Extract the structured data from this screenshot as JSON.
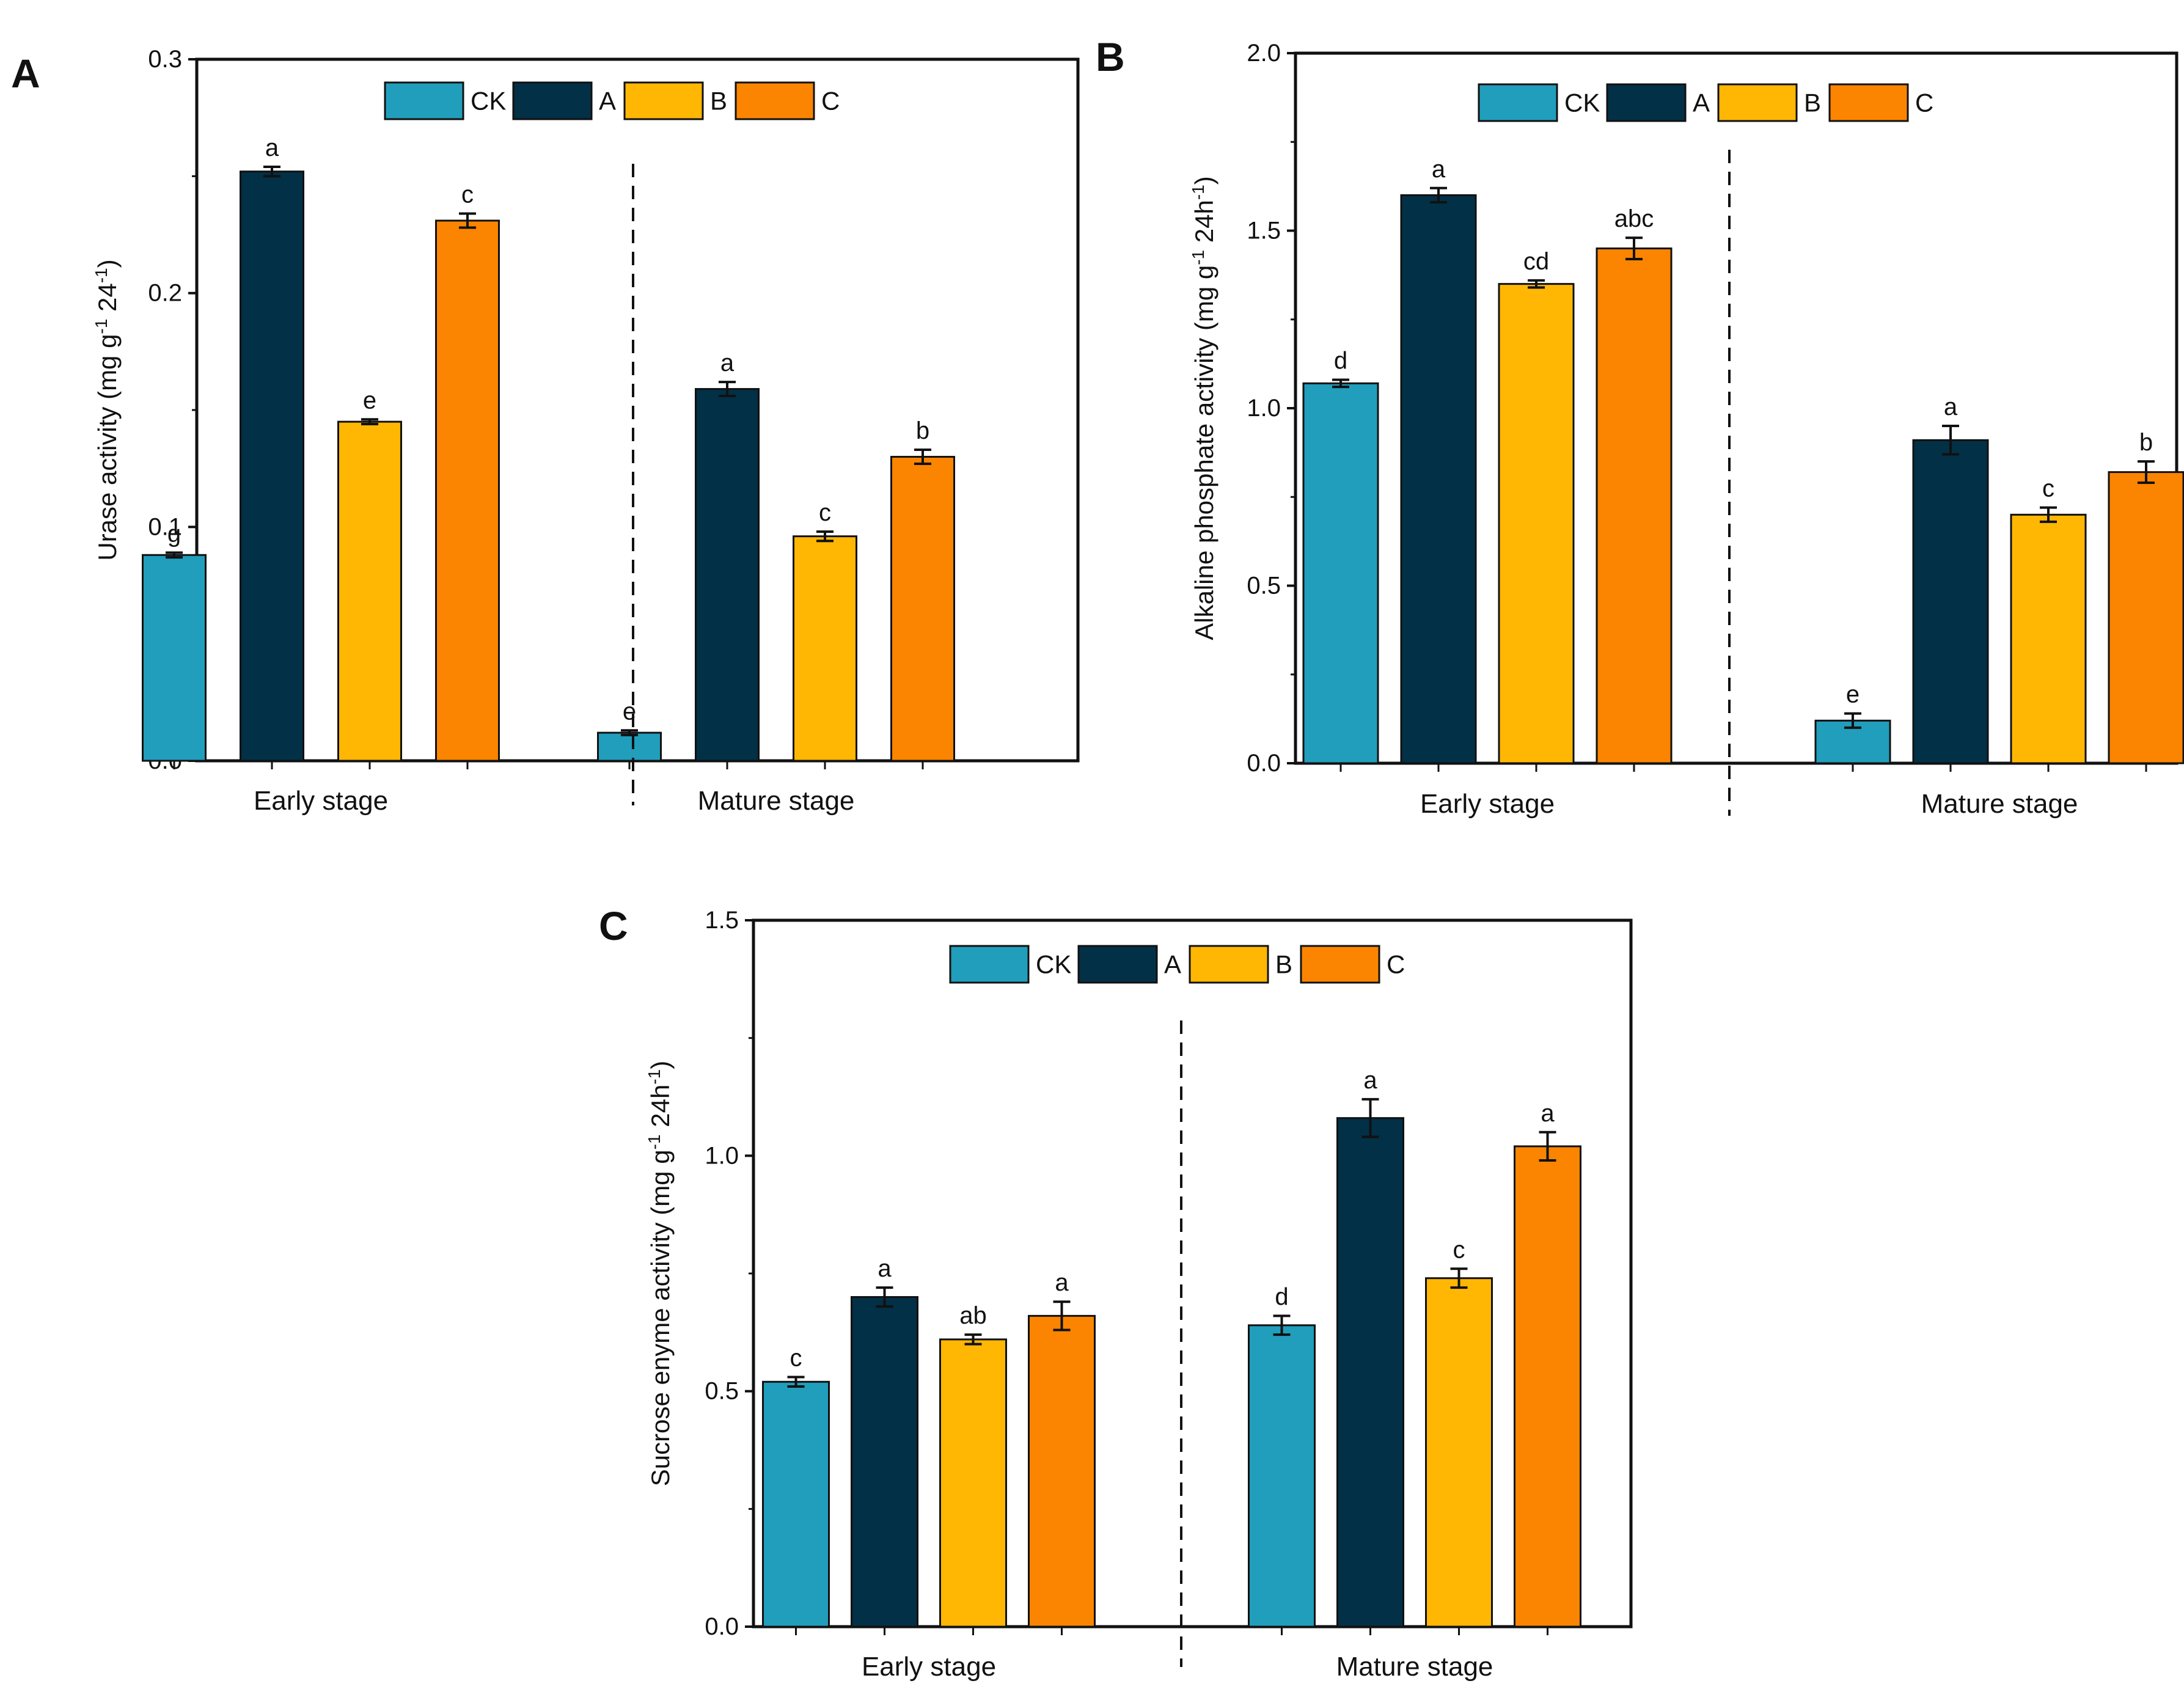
{
  "colors": {
    "CK": "#219EBC",
    "A": "#023047",
    "B": "#FFB703",
    "C": "#FB8500"
  },
  "chart_data": [
    {
      "panel": "A",
      "type": "bar",
      "ylabel": "Urase activity (mg g-1 24-1)",
      "ylabel_parts": [
        "Urase activity (mg g",
        "-1",
        " 24",
        "-1",
        ")"
      ],
      "ylim": [
        0,
        0.3
      ],
      "yticks": [
        0.0,
        0.1,
        0.2,
        0.3
      ],
      "tick_decimals": 1,
      "groups": [
        "Early stage",
        "Mature stage"
      ],
      "legend": [
        "CK",
        "A",
        "B",
        "C"
      ],
      "series": [
        {
          "name": "CK",
          "values": [
            0.088,
            0.012
          ],
          "errors": [
            0.001,
            0.001
          ],
          "letters": [
            "g",
            "e"
          ]
        },
        {
          "name": "A",
          "values": [
            0.252,
            0.159
          ],
          "errors": [
            0.002,
            0.003
          ],
          "letters": [
            "a",
            "a"
          ]
        },
        {
          "name": "B",
          "values": [
            0.145,
            0.096
          ],
          "errors": [
            0.001,
            0.002
          ],
          "letters": [
            "e",
            "c"
          ]
        },
        {
          "name": "C",
          "values": [
            0.231,
            0.13
          ],
          "errors": [
            0.003,
            0.003
          ],
          "letters": [
            "c",
            "b"
          ]
        }
      ]
    },
    {
      "panel": "B",
      "type": "bar",
      "ylabel": "Alkaline phosphate activity (mg g-1 24h-1)",
      "ylabel_parts": [
        "Alkaline phosphate activity (mg g",
        "-1",
        " 24h",
        "-1",
        ")"
      ],
      "ylim": [
        0,
        2.0
      ],
      "yticks": [
        0.0,
        0.5,
        1.0,
        1.5,
        2.0
      ],
      "tick_decimals": 1,
      "groups": [
        "Early stage",
        "Mature stage"
      ],
      "legend": [
        "CK",
        "A",
        "B",
        "C"
      ],
      "series": [
        {
          "name": "CK",
          "values": [
            1.07,
            0.12
          ],
          "errors": [
            0.01,
            0.02
          ],
          "letters": [
            "d",
            "e"
          ]
        },
        {
          "name": "A",
          "values": [
            1.6,
            0.91
          ],
          "errors": [
            0.02,
            0.04
          ],
          "letters": [
            "a",
            "a"
          ]
        },
        {
          "name": "B",
          "values": [
            1.35,
            0.7
          ],
          "errors": [
            0.01,
            0.02
          ],
          "letters": [
            "cd",
            "c"
          ]
        },
        {
          "name": "C",
          "values": [
            1.45,
            0.82
          ],
          "errors": [
            0.03,
            0.03
          ],
          "letters": [
            "abc",
            "b"
          ]
        }
      ]
    },
    {
      "panel": "C",
      "type": "bar",
      "ylabel": "Sucrose enyme activity (mg g-1 24h-1)",
      "ylabel_parts": [
        "Sucrose enyme activity (mg g",
        "-1",
        " 24h",
        "-1",
        ")"
      ],
      "ylim": [
        0,
        1.5
      ],
      "yticks": [
        0.0,
        0.5,
        1.0,
        1.5
      ],
      "tick_decimals": 1,
      "groups": [
        "Early stage",
        "Mature stage"
      ],
      "legend": [
        "CK",
        "A",
        "B",
        "C"
      ],
      "series": [
        {
          "name": "CK",
          "values": [
            0.52,
            0.64
          ],
          "errors": [
            0.01,
            0.02
          ],
          "letters": [
            "c",
            "d"
          ]
        },
        {
          "name": "A",
          "values": [
            0.7,
            1.08
          ],
          "errors": [
            0.02,
            0.04
          ],
          "letters": [
            "a",
            "a"
          ]
        },
        {
          "name": "B",
          "values": [
            0.61,
            0.74
          ],
          "errors": [
            0.01,
            0.02
          ],
          "letters": [
            "ab",
            "c"
          ]
        },
        {
          "name": "C",
          "values": [
            0.66,
            1.02
          ],
          "errors": [
            0.03,
            0.03
          ],
          "letters": [
            "a",
            "a"
          ]
        }
      ]
    }
  ]
}
